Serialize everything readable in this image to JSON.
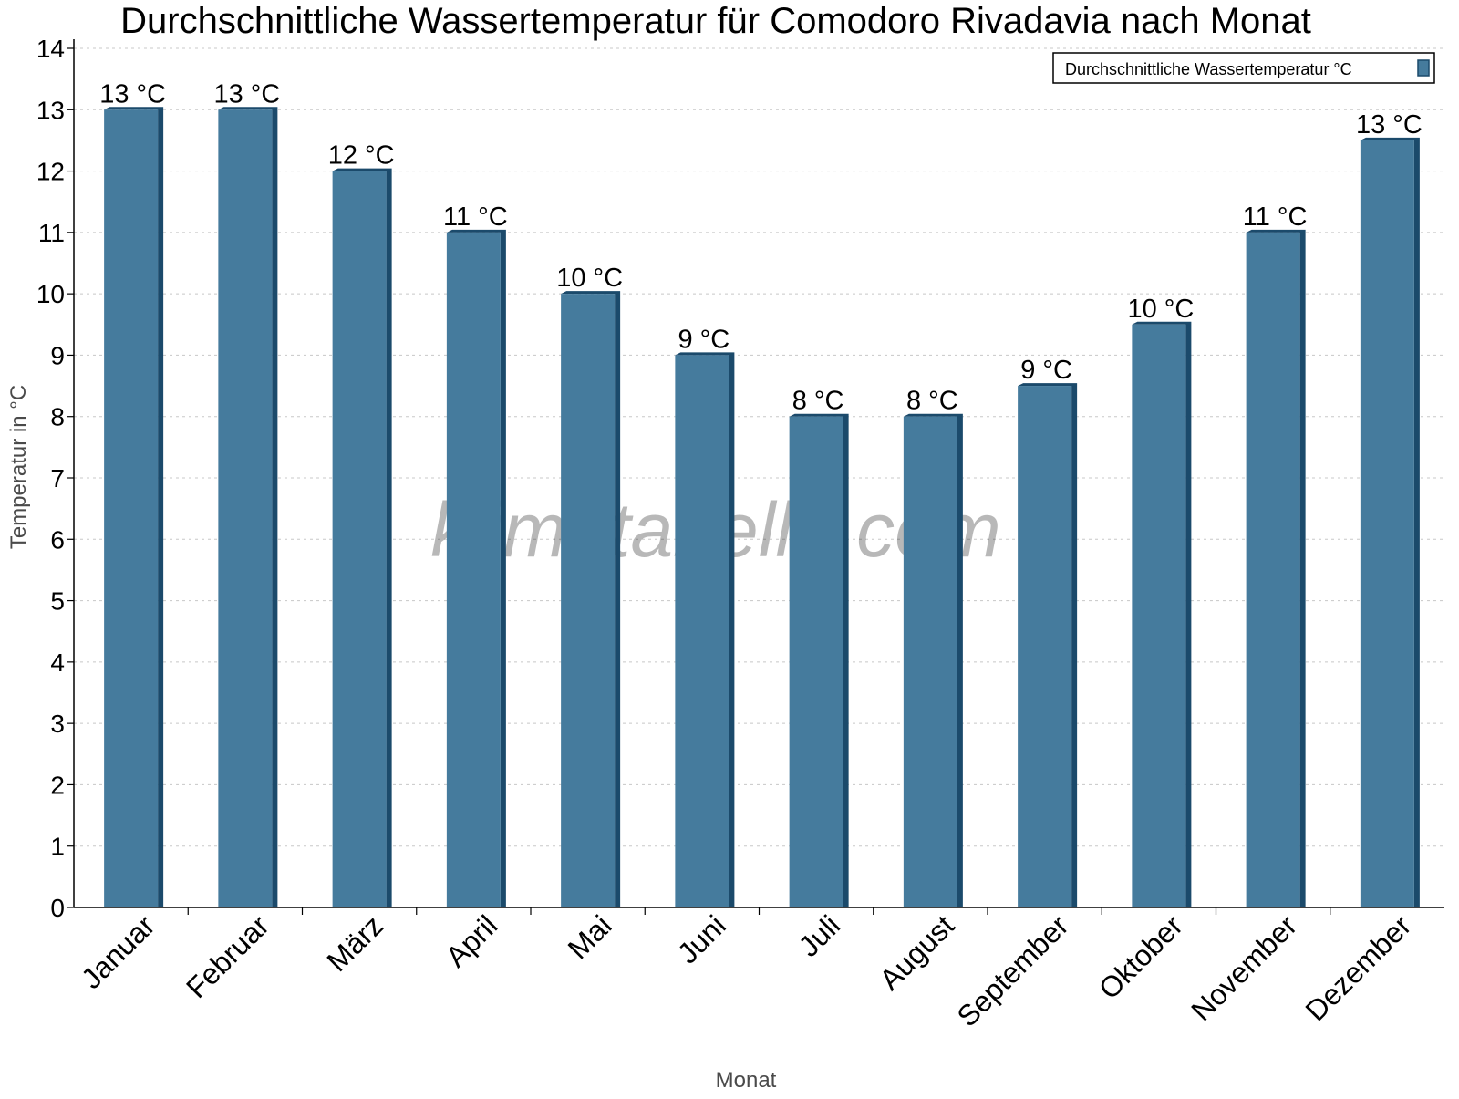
{
  "chart_data": {
    "type": "bar",
    "title": "Durchschnittliche Wassertemperatur für Comodoro Rivadavia nach Monat",
    "xlabel": "Monat",
    "ylabel": "Temperatur in °C",
    "ylim": [
      0,
      14
    ],
    "yticks": [
      "0",
      "1",
      "2",
      "3",
      "4",
      "5",
      "6",
      "7",
      "8",
      "9",
      "10",
      "11",
      "12",
      "13",
      "14"
    ],
    "grid": true,
    "legend_position": "top-right",
    "categories": [
      "Januar",
      "Februar",
      "März",
      "April",
      "Mai",
      "Juni",
      "Juli",
      "August",
      "September",
      "Oktober",
      "November",
      "Dezember"
    ],
    "series": [
      {
        "name": "Durchschnittliche Wassertemperatur °C",
        "values": [
          13,
          13,
          12,
          11,
          10,
          9,
          8,
          8,
          8.5,
          9.5,
          11,
          12.5
        ],
        "labels": [
          "13 °C",
          "13 °C",
          "12 °C",
          "11 °C",
          "10 °C",
          "9 °C",
          "8 °C",
          "8 °C",
          "9 °C",
          "10 °C",
          "11 °C",
          "13 °C"
        ],
        "color": "#457b9d",
        "shade_color": "#1b4a6b"
      }
    ],
    "watermark": "klimatabelle.com"
  }
}
